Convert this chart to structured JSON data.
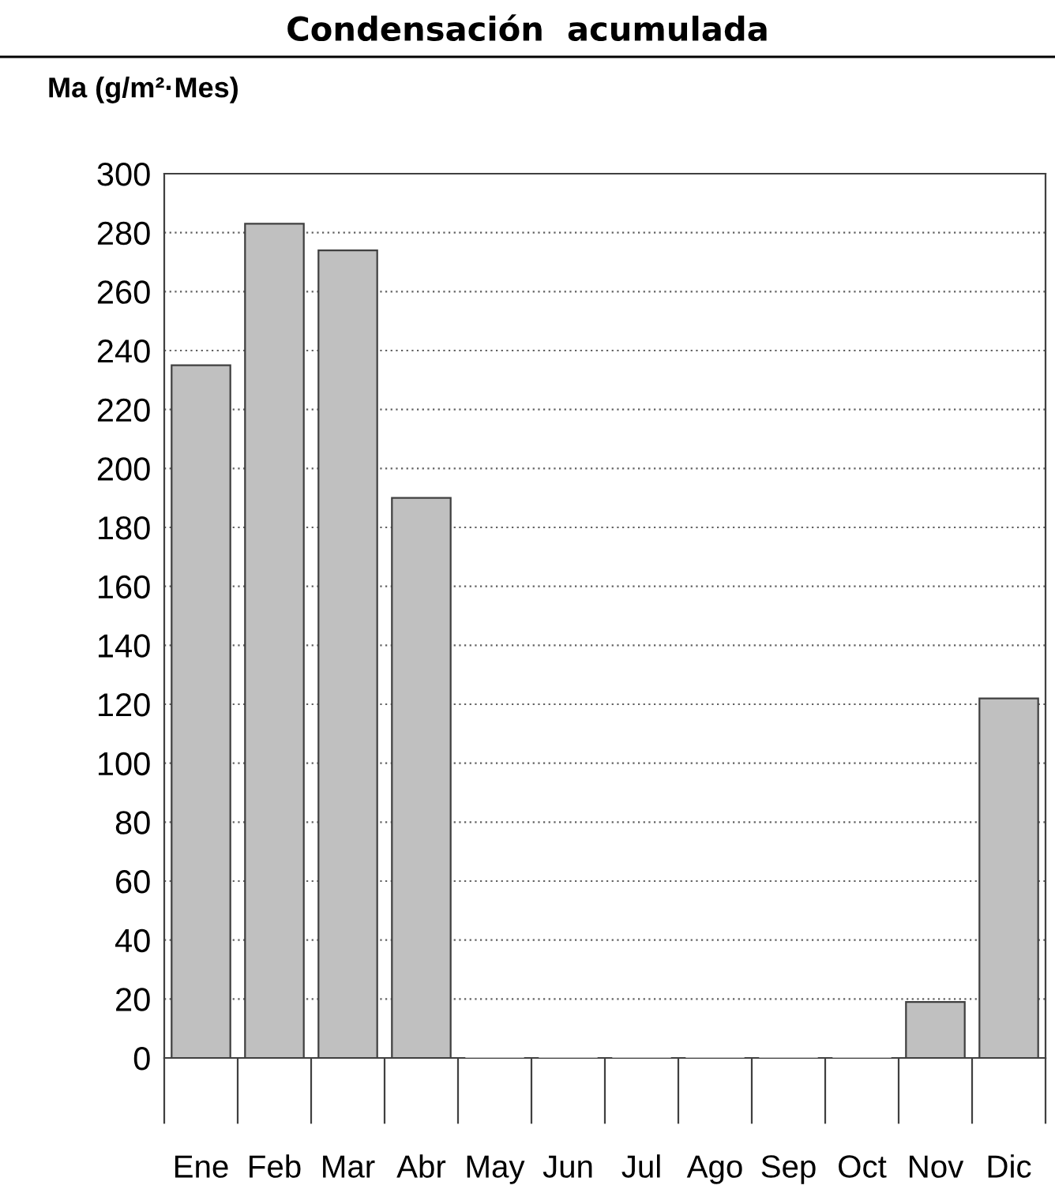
{
  "chart_data": {
    "type": "bar",
    "title": "Condensación  acumulada",
    "ylabel": "Ma (g/m²·Mes)",
    "categories": [
      "Ene",
      "Feb",
      "Mar",
      "Abr",
      "May",
      "Jun",
      "Jul",
      "Ago",
      "Sep",
      "Oct",
      "Nov",
      "Dic"
    ],
    "values": [
      235,
      283,
      274,
      190,
      0,
      0,
      0,
      0,
      0,
      0,
      19,
      122
    ],
    "color": "#c0c0c0",
    "ylim": [
      0,
      300
    ],
    "yticks": [
      0,
      20,
      40,
      60,
      80,
      100,
      120,
      140,
      160,
      180,
      200,
      220,
      240,
      260,
      280,
      300
    ],
    "grid": "y"
  }
}
